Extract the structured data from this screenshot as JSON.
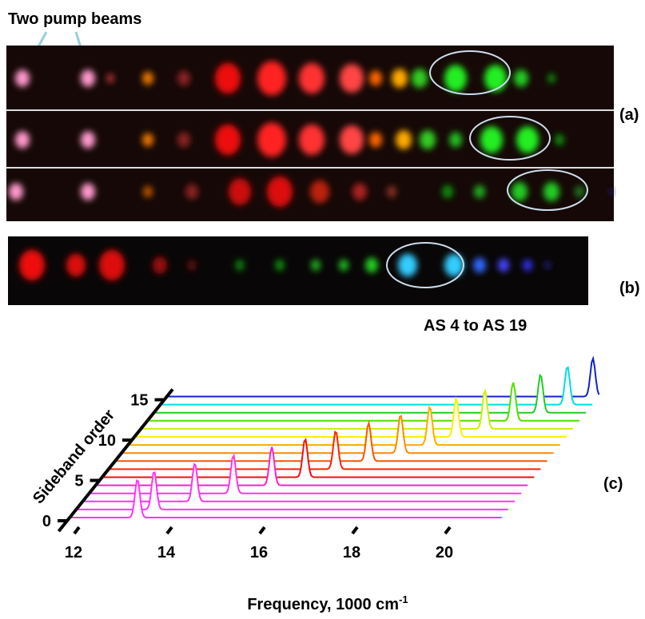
{
  "labels": {
    "pump": "Two pump beams",
    "a": "(a)",
    "b": "(b)",
    "c": "(c)",
    "range": "AS 4 to AS 19"
  },
  "chart_data": {
    "type": "waterfall",
    "xlabel": "Frequency, 1000 cm",
    "xlabel_sup": "-1",
    "ylabel": "Sideband order",
    "xlim": [
      11.8,
      21.1
    ],
    "xticks": [
      12,
      14,
      16,
      18,
      20
    ],
    "ylim": [
      0,
      16
    ],
    "yticks": [
      0,
      5,
      10,
      15
    ],
    "series": [
      {
        "color": "#ff33ff",
        "order": 0,
        "peak": 13.24
      },
      {
        "color": "#ff33ff",
        "order": 1,
        "peak": 13.46
      },
      {
        "color": "#ff33ee",
        "order": 2,
        "peak": 14.2
      },
      {
        "color": "#ff33ee",
        "order": 3,
        "peak": 14.89
      },
      {
        "color": "#ff22cc",
        "order": 4,
        "peak": 15.58
      },
      {
        "color": "#ee1111",
        "order": 5,
        "peak": 16.16
      },
      {
        "color": "#ff2200",
        "order": 6,
        "peak": 16.68
      },
      {
        "color": "#ff5500",
        "order": 7,
        "peak": 17.25
      },
      {
        "color": "#ff8800",
        "order": 8,
        "peak": 17.8
      },
      {
        "color": "#ffaa00",
        "order": 9,
        "peak": 18.29
      },
      {
        "color": "#ffee00",
        "order": 10,
        "peak": 18.72
      },
      {
        "color": "#ccee00",
        "order": 11,
        "peak": 19.2
      },
      {
        "color": "#55dd00",
        "order": 12,
        "peak": 19.67
      },
      {
        "color": "#22cc22",
        "order": 13,
        "peak": 20.12
      },
      {
        "color": "#00dddd",
        "order": 14,
        "peak": 20.56
      },
      {
        "color": "#1122cc",
        "order": 15,
        "peak": 20.97
      }
    ]
  }
}
